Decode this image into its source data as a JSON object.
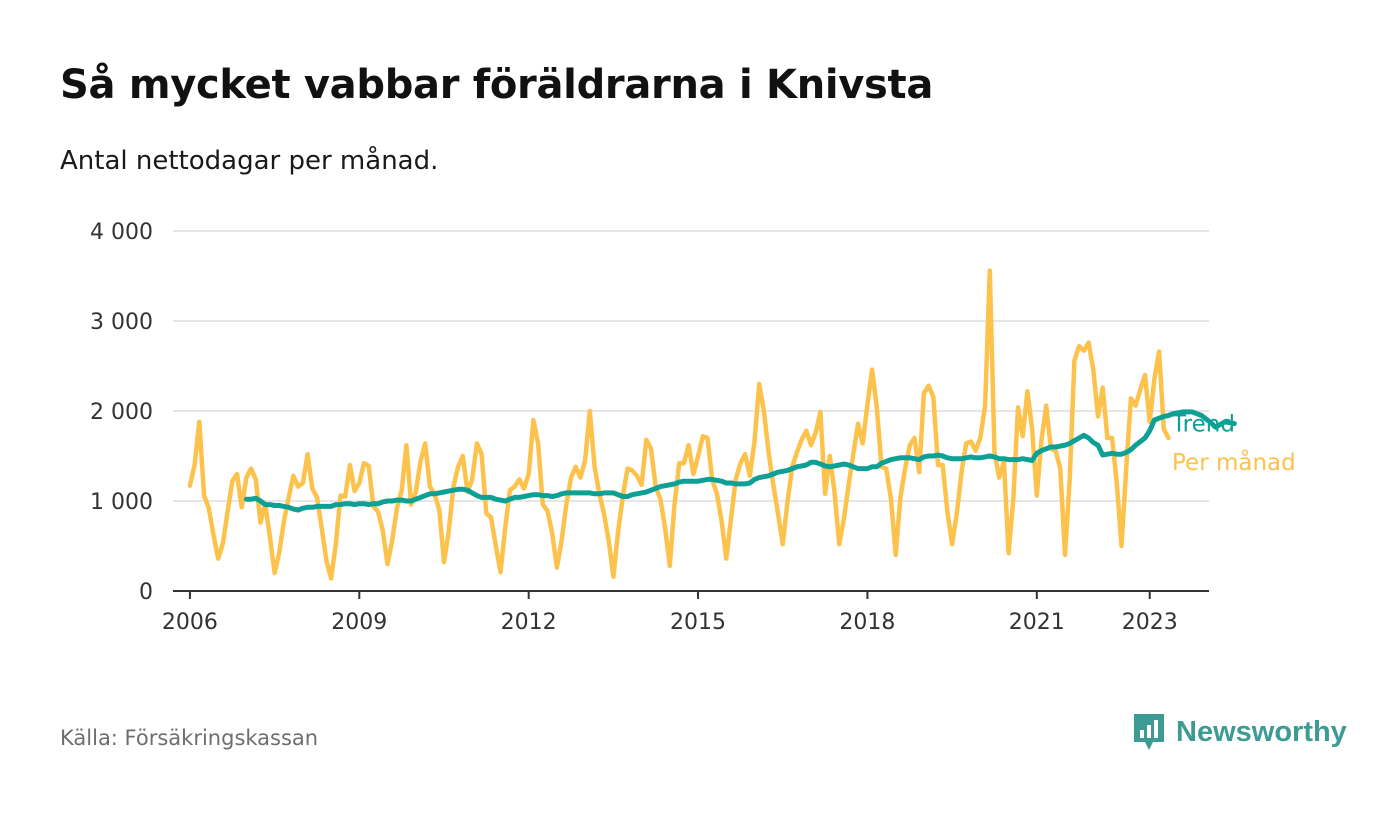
{
  "header": {
    "title": "Så mycket vabbar föräldrarna i Knivsta",
    "subtitle": "Antal nettodagar per månad."
  },
  "footer": {
    "source": "Källa: Försäkringskassan",
    "brand": "Newsworthy",
    "brand_icon": "bar-chart-speech-bubble-icon"
  },
  "colors": {
    "monthly": "#fdc24c",
    "trend": "#0ea094",
    "grid": "#dddddd",
    "axis": "#333333",
    "brand": "#3c9c94"
  },
  "chart_data": {
    "type": "line",
    "title": "Så mycket vabbar föräldrarna i Knivsta",
    "subtitle": "Antal nettodagar per månad.",
    "xlabel": "",
    "ylabel": "",
    "ylim": [
      0,
      4000
    ],
    "yticks": [
      0,
      1000,
      2000,
      3000,
      4000
    ],
    "ytick_labels": [
      "0",
      "1 000",
      "2 000",
      "3 000",
      "4 000"
    ],
    "xlim": [
      2005.7,
      2024.05
    ],
    "xticks": [
      2006,
      2009,
      2012,
      2015,
      2018,
      2021,
      2023
    ],
    "xtick_labels": [
      "2006",
      "2009",
      "2012",
      "2015",
      "2018",
      "2021",
      "2023"
    ],
    "grid": true,
    "legend": "line-end labels at right",
    "series": [
      {
        "name": "Per månad",
        "start": [
          2006,
          1
        ],
        "values": [
          1170,
          1400,
          1880,
          1060,
          920,
          620,
          360,
          530,
          880,
          1220,
          1300,
          930,
          1260,
          1360,
          1240,
          760,
          970,
          600,
          200,
          430,
          780,
          1040,
          1280,
          1160,
          1200,
          1520,
          1140,
          1040,
          700,
          340,
          140,
          520,
          1060,
          1050,
          1400,
          1110,
          1200,
          1420,
          1390,
          940,
          880,
          670,
          300,
          560,
          920,
          1120,
          1620,
          960,
          1100,
          1440,
          1640,
          1160,
          1080,
          900,
          320,
          660,
          1160,
          1380,
          1500,
          1100,
          1240,
          1640,
          1520,
          860,
          820,
          500,
          210,
          700,
          1120,
          1160,
          1240,
          1140,
          1300,
          1900,
          1640,
          960,
          890,
          640,
          260,
          560,
          960,
          1260,
          1380,
          1260,
          1450,
          2000,
          1380,
          1080,
          860,
          560,
          160,
          660,
          1050,
          1360,
          1340,
          1280,
          1180,
          1680,
          1580,
          1160,
          1020,
          700,
          280,
          960,
          1420,
          1420,
          1620,
          1300,
          1500,
          1720,
          1700,
          1240,
          1080,
          780,
          360,
          800,
          1240,
          1420,
          1520,
          1280,
          1660,
          2300,
          2000,
          1540,
          1180,
          860,
          520,
          980,
          1380,
          1540,
          1680,
          1780,
          1620,
          1760,
          1990,
          1080,
          1500,
          1100,
          520,
          800,
          1180,
          1520,
          1860,
          1640,
          2070,
          2460,
          2040,
          1380,
          1360,
          1020,
          400,
          1040,
          1360,
          1620,
          1700,
          1320,
          2200,
          2280,
          2160,
          1400,
          1400,
          880,
          520,
          860,
          1320,
          1640,
          1660,
          1560,
          1700,
          2060,
          3560,
          1540,
          1260,
          1440,
          420,
          1020,
          2040,
          1720,
          2220,
          1800,
          1060,
          1680,
          2060,
          1580,
          1560,
          1360,
          400,
          1240,
          2560,
          2720,
          2670,
          2760,
          2460,
          1940,
          2260,
          1700,
          1700,
          1200,
          500,
          1360,
          2140,
          2060,
          2240,
          2400,
          1880,
          2360,
          2660,
          1800,
          1700
        ]
      },
      {
        "name": "Trend",
        "start": [
          2007,
          1
        ],
        "values": [
          1020,
          1020,
          1030,
          1000,
          960,
          960,
          950,
          950,
          940,
          930,
          910,
          900,
          920,
          930,
          930,
          940,
          940,
          940,
          940,
          960,
          960,
          970,
          970,
          960,
          970,
          970,
          960,
          970,
          970,
          990,
          1000,
          1000,
          1010,
          1010,
          1000,
          1000,
          1020,
          1040,
          1060,
          1080,
          1080,
          1090,
          1100,
          1110,
          1120,
          1130,
          1130,
          1120,
          1090,
          1060,
          1040,
          1040,
          1040,
          1020,
          1010,
          1000,
          1020,
          1040,
          1040,
          1050,
          1060,
          1070,
          1070,
          1060,
          1060,
          1050,
          1060,
          1080,
          1090,
          1090,
          1090,
          1090,
          1090,
          1090,
          1080,
          1080,
          1090,
          1090,
          1090,
          1070,
          1050,
          1050,
          1070,
          1080,
          1090,
          1100,
          1120,
          1140,
          1160,
          1170,
          1180,
          1190,
          1210,
          1220,
          1220,
          1220,
          1220,
          1230,
          1240,
          1240,
          1230,
          1220,
          1200,
          1200,
          1190,
          1190,
          1190,
          1200,
          1240,
          1260,
          1270,
          1280,
          1300,
          1320,
          1330,
          1340,
          1360,
          1380,
          1390,
          1400,
          1430,
          1430,
          1410,
          1390,
          1380,
          1390,
          1400,
          1410,
          1400,
          1380,
          1360,
          1360,
          1360,
          1380,
          1380,
          1420,
          1440,
          1460,
          1470,
          1480,
          1480,
          1480,
          1470,
          1460,
          1490,
          1500,
          1500,
          1510,
          1500,
          1480,
          1470,
          1470,
          1470,
          1480,
          1490,
          1480,
          1480,
          1490,
          1500,
          1490,
          1470,
          1470,
          1460,
          1460,
          1460,
          1470,
          1460,
          1450,
          1530,
          1560,
          1580,
          1600,
          1600,
          1610,
          1620,
          1640,
          1670,
          1700,
          1730,
          1700,
          1650,
          1620,
          1510,
          1520,
          1530,
          1520,
          1520,
          1540,
          1570,
          1620,
          1660,
          1700,
          1780,
          1900,
          1920,
          1940,
          1950,
          1970,
          1980,
          1990,
          1990,
          1990,
          1970,
          1950,
          1910,
          1870,
          1820,
          1850,
          1880,
          1870,
          1860
        ]
      }
    ]
  }
}
